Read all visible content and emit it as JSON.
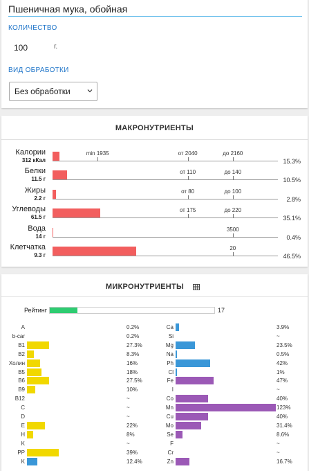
{
  "food": {
    "title": "Пшеничная мука, обойная"
  },
  "quantity": {
    "label": "КОЛИЧЕСТВО",
    "value": "100",
    "unit": "г."
  },
  "processing": {
    "label": "ВИД ОБРАБОТКИ",
    "selected": "Без обработки"
  },
  "macro": {
    "title": "МАКРОНУТРИЕНТЫ",
    "rows": [
      {
        "name": "Калории",
        "amount": "312 кКал",
        "fill": 0.031,
        "pct": "15.3%",
        "ticks": [
          {
            "label": "min 1935",
            "pos": 0.2
          },
          {
            "label": "от 2040",
            "pos": 0.6
          },
          {
            "label": "до 2160",
            "pos": 0.8
          }
        ]
      },
      {
        "name": "Белки",
        "amount": "11.5 г",
        "fill": 0.063,
        "pct": "10.5%",
        "ticks": [
          {
            "label": "от 110",
            "pos": 0.6
          },
          {
            "label": "до 140",
            "pos": 0.8
          }
        ]
      },
      {
        "name": "Жиры",
        "amount": "2.2 г",
        "fill": 0.014,
        "pct": "2.8%",
        "ticks": [
          {
            "label": "от 80",
            "pos": 0.6
          },
          {
            "label": "до 100",
            "pos": 0.8
          }
        ]
      },
      {
        "name": "Углеводы",
        "amount": "61.5 г",
        "fill": 0.213,
        "pct": "35.1%",
        "ticks": [
          {
            "label": "от 175",
            "pos": 0.6
          },
          {
            "label": "до 220",
            "pos": 0.8
          }
        ]
      },
      {
        "name": "Вода",
        "amount": "14 г",
        "fill": 0.003,
        "pct": "0.4%",
        "ticks": [
          {
            "label": "3500",
            "pos": 0.8
          }
        ]
      },
      {
        "name": "Клетчатка",
        "amount": "9.3 г",
        "fill": 0.372,
        "pct": "46.5%",
        "ticks": [
          {
            "label": "20",
            "pos": 0.8
          }
        ]
      }
    ]
  },
  "micro": {
    "title": "МИКРОНУТРИЕНТЫ",
    "icon": "grid-icon",
    "rating": {
      "label": "Рейтинг",
      "value": "17",
      "fill": 0.17
    },
    "colors": {
      "yellow": "#f1d800",
      "blue": "#3a97d8",
      "purple": "#9b59b6"
    },
    "left": [
      {
        "name": "A",
        "pct": "0.2%",
        "fill": 0,
        "color": "yellow"
      },
      {
        "name": "b-car",
        "pct": "0.2%",
        "fill": 0,
        "color": "yellow"
      },
      {
        "name": "B1",
        "pct": "27.3%",
        "fill": 0.273,
        "color": "yellow"
      },
      {
        "name": "B2",
        "pct": "8.3%",
        "fill": 0.083,
        "color": "yellow"
      },
      {
        "name": "Холин",
        "pct": "16%",
        "fill": 0.16,
        "color": "yellow"
      },
      {
        "name": "B5",
        "pct": "18%",
        "fill": 0.18,
        "color": "yellow"
      },
      {
        "name": "B6",
        "pct": "27.5%",
        "fill": 0.275,
        "color": "yellow"
      },
      {
        "name": "B9",
        "pct": "10%",
        "fill": 0.1,
        "color": "yellow"
      },
      {
        "name": "B12",
        "pct": "~",
        "fill": 0,
        "color": "yellow"
      },
      {
        "name": "C",
        "pct": "~",
        "fill": 0,
        "color": "yellow"
      },
      {
        "name": "D",
        "pct": "~",
        "fill": 0,
        "color": "yellow"
      },
      {
        "name": "E",
        "pct": "22%",
        "fill": 0.22,
        "color": "yellow"
      },
      {
        "name": "H",
        "pct": "8%",
        "fill": 0.08,
        "color": "yellow"
      },
      {
        "name": "K",
        "pct": "~",
        "fill": 0,
        "color": "yellow"
      },
      {
        "name": "PP",
        "pct": "39%",
        "fill": 0.39,
        "color": "yellow"
      },
      {
        "name": "K",
        "pct": "12.4%",
        "fill": 0.124,
        "color": "blue"
      }
    ],
    "right": [
      {
        "name": "Ca",
        "pct": "3.9%",
        "fill": 0.039,
        "color": "blue"
      },
      {
        "name": "Si",
        "pct": "~",
        "fill": 0,
        "color": "blue"
      },
      {
        "name": "Mg",
        "pct": "23.5%",
        "fill": 0.235,
        "color": "blue"
      },
      {
        "name": "Na",
        "pct": "0.5%",
        "fill": 0.005,
        "color": "blue"
      },
      {
        "name": "Ph",
        "pct": "42%",
        "fill": 0.42,
        "color": "blue"
      },
      {
        "name": "Cl",
        "pct": "1%",
        "fill": 0.01,
        "color": "blue"
      },
      {
        "name": "Fe",
        "pct": "47%",
        "fill": 0.47,
        "color": "purple"
      },
      {
        "name": "I",
        "pct": "~",
        "fill": 0,
        "color": "purple"
      },
      {
        "name": "Co",
        "pct": "40%",
        "fill": 0.4,
        "color": "purple"
      },
      {
        "name": "Mn",
        "pct": "123%",
        "fill": 1.23,
        "color": "purple"
      },
      {
        "name": "Cu",
        "pct": "40%",
        "fill": 0.4,
        "color": "purple"
      },
      {
        "name": "Mo",
        "pct": "31.4%",
        "fill": 0.314,
        "color": "purple"
      },
      {
        "name": "Se",
        "pct": "8.6%",
        "fill": 0.086,
        "color": "purple"
      },
      {
        "name": "F",
        "pct": "~",
        "fill": 0,
        "color": "purple"
      },
      {
        "name": "Cr",
        "pct": "~",
        "fill": 0,
        "color": "purple"
      },
      {
        "name": "Zn",
        "pct": "16.7%",
        "fill": 0.167,
        "color": "purple"
      }
    ]
  }
}
